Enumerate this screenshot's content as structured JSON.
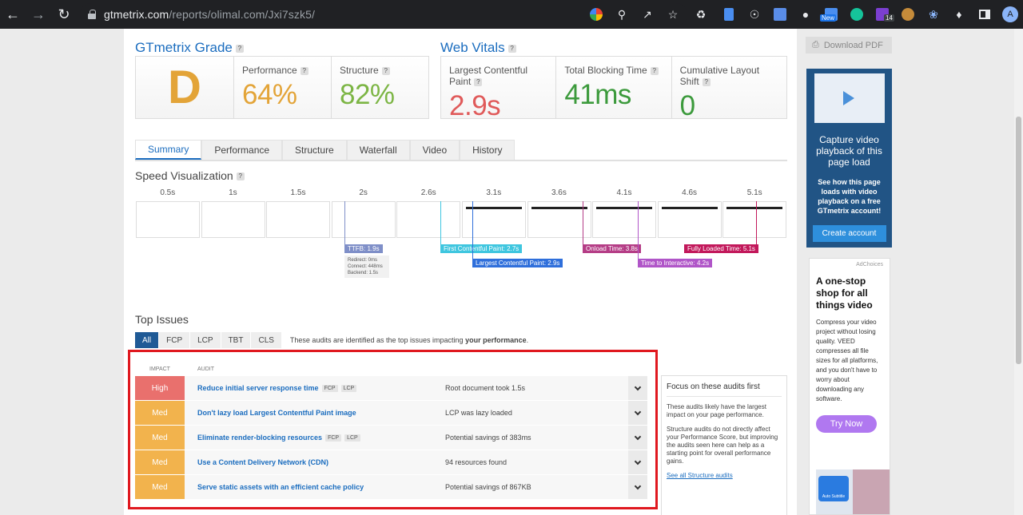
{
  "browser": {
    "url_host": "gtmetrix.com",
    "url_path": "/reports/olimal.com/Jxi7szk5/",
    "extensions": [
      "google-icon",
      "zoom-icon",
      "share-icon",
      "star-icon",
      "recycle-icon",
      "doc-icon",
      "globe-icon",
      "translate-icon",
      "camera-icon",
      "new-ext-icon",
      "grammarly-icon",
      "purple-ext-icon",
      "ext-icon",
      "swirl-icon",
      "puzzle-icon",
      "sidepanel-icon"
    ],
    "badge_new": "New",
    "badge_count": "14",
    "avatar_letter": "A"
  },
  "grade": {
    "title": "GTmetrix Grade",
    "help": "?",
    "letter": "D",
    "metrics": [
      {
        "label": "Performance",
        "value": "64%",
        "color": "#e3a438"
      },
      {
        "label": "Structure",
        "value": "82%",
        "color": "#7cb544"
      }
    ]
  },
  "vitals": {
    "title": "Web Vitals",
    "help": "?",
    "metrics": [
      {
        "label": "Largest Contentful Paint",
        "value": "2.9s",
        "color": "#e05a5a"
      },
      {
        "label": "Total Blocking Time",
        "value": "41ms",
        "color": "#3c9a3c"
      },
      {
        "label": "Cumulative Layout Shift",
        "value": "0",
        "color": "#3c9a3c"
      }
    ]
  },
  "tabs": [
    "Summary",
    "Performance",
    "Structure",
    "Waterfall",
    "Video",
    "History"
  ],
  "active_tab": 0,
  "speed": {
    "title": "Speed Visualization",
    "ticks": [
      "0.5s",
      "1s",
      "1.5s",
      "2s",
      "2.6s",
      "3.1s",
      "3.6s",
      "4.1s",
      "4.6s",
      "5.1s"
    ],
    "markers": [
      {
        "label": "TTFB: 1.9s",
        "color": "#7f8fc8"
      },
      {
        "label": "First Contentful Paint: 2.7s",
        "color": "#3fc6df"
      },
      {
        "label": "Largest Contentful Paint: 2.9s",
        "color": "#2f6fdb"
      },
      {
        "label": "Onload Time: 3.8s",
        "color": "#b53d86"
      },
      {
        "label": "Time to Interactive: 4.2s",
        "color": "#b055c8"
      },
      {
        "label": "Fully Loaded Time: 5.1s",
        "color": "#c2185b"
      }
    ],
    "ttfb_detail": [
      "Redirect: 0ms",
      "Connect: 448ms",
      "Backend: 1.5s"
    ]
  },
  "issues": {
    "title": "Top Issues",
    "filters": [
      "All",
      "FCP",
      "LCP",
      "TBT",
      "CLS"
    ],
    "active_filter": 0,
    "note_prefix": "These audits are identified as the top issues impacting",
    "note_bold": "your performance",
    "note_suffix": ".",
    "head_impact": "IMPACT",
    "head_audit": "AUDIT",
    "rows": [
      {
        "impact": "High",
        "level": "high",
        "audit": "Reduce initial server response time",
        "chips": [
          "FCP",
          "LCP"
        ],
        "result": "Root document took 1.5s"
      },
      {
        "impact": "Med",
        "level": "med",
        "audit": "Don't lazy load Largest Contentful Paint image",
        "chips": [],
        "result": "LCP was lazy loaded"
      },
      {
        "impact": "Med",
        "level": "med",
        "audit": "Eliminate render-blocking resources",
        "chips": [
          "FCP",
          "LCP"
        ],
        "result": "Potential savings of 383ms"
      },
      {
        "impact": "Med",
        "level": "med",
        "audit": "Use a Content Delivery Network (CDN)",
        "chips": [],
        "result": "94 resources found"
      },
      {
        "impact": "Med",
        "level": "med",
        "audit": "Serve static assets with an efficient cache policy",
        "chips": [],
        "result": "Potential savings of 867KB"
      }
    ]
  },
  "focus": {
    "title": "Focus on these audits first",
    "p1": "These audits likely have the largest impact on your page performance.",
    "p2": "Structure audits do not directly affect your Performance Score, but improving the audits seen here can help as a starting point for overall performance gains.",
    "link": "See all Structure audits"
  },
  "sidebar": {
    "pdf": "Download PDF",
    "promo_head": "Capture video playback of this page load",
    "promo_sub": "See how this page loads with video playback on a free GTmetrix account!",
    "promo_btn": "Create account",
    "ad_choices": "AdChoices",
    "ad_head": "A one-stop shop for all things video",
    "ad_body": "Compress your video project without losing quality. VEED compresses all file sizes for all platforms, and you don't have to worry about downloading any software.",
    "ad_btn": "Try Now",
    "ad_badge": "Auto Subtitle"
  }
}
